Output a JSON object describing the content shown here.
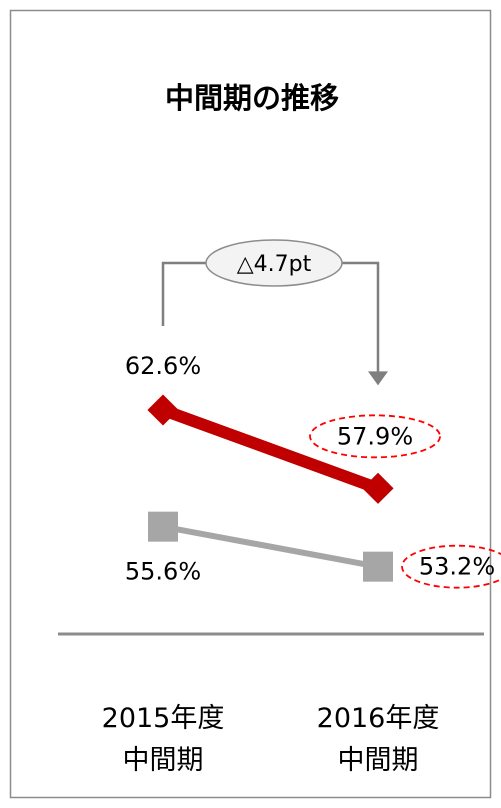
{
  "chart_data": {
    "type": "line",
    "title": "中間期の推移",
    "categories": [
      "2015年度\n中間期",
      "2016年度\n中間期"
    ],
    "category_lines": [
      [
        "2015年度",
        "中間期"
      ],
      [
        "2016年度",
        "中間期"
      ]
    ],
    "series": [
      {
        "values": [
          62.6,
          57.9
        ],
        "labels": [
          "62.6%",
          "57.9%"
        ],
        "color": "#c00000",
        "marker": "diamond"
      },
      {
        "values": [
          55.6,
          53.2
        ],
        "labels": [
          "55.6%",
          "53.2%"
        ],
        "color": "#a6a6a6",
        "marker": "square"
      }
    ],
    "annotation": {
      "text": "△4.7pt",
      "from": "62.6%",
      "to": "57.9%"
    },
    "highlight_color": "#ff0000",
    "ylim": [
      50,
      65
    ],
    "grid": false,
    "legend": "none"
  }
}
